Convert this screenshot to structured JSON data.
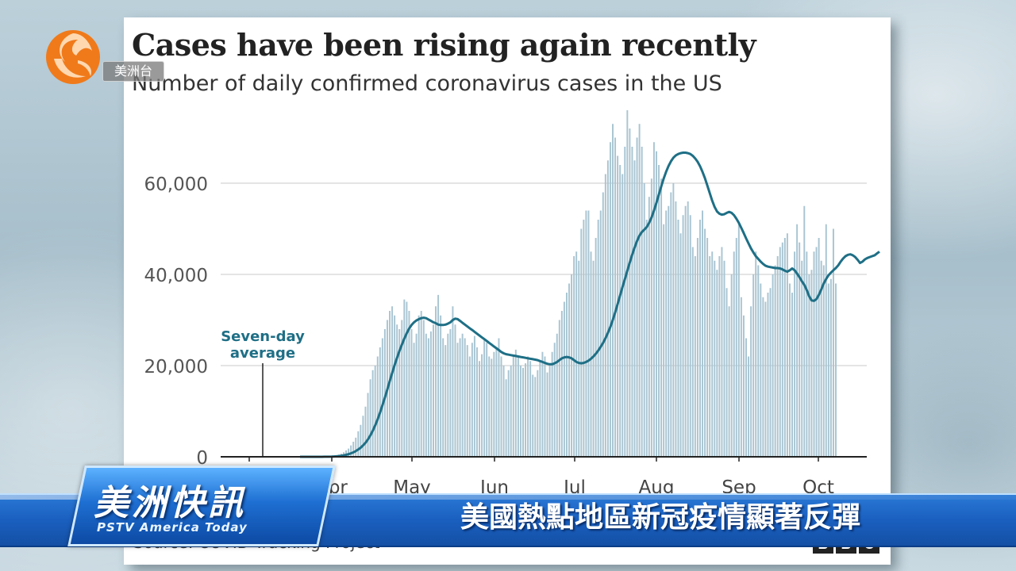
{
  "chart_data": {
    "type": "bar",
    "title": "Cases have been rising again recently",
    "subtitle": "Number of daily confirmed coronavirus cases in the US",
    "source": "Source: COVID Tracking Project",
    "xlabel": "",
    "ylabel": "",
    "ylim": [
      0,
      75000
    ],
    "yticks": [
      0,
      20000,
      40000,
      60000
    ],
    "ytick_labels": [
      "0",
      "20,000",
      "40,000",
      "60,000"
    ],
    "xtick_labels": [
      "Apr",
      "May",
      "Jun",
      "Jul",
      "Aug",
      "Sep",
      "Oct"
    ],
    "grid": true,
    "annotation": [
      "Seven-day",
      "average"
    ],
    "series": [
      {
        "type": "bar",
        "values": []
      },
      {
        "type": "line",
        "values": []
      }
    ],
    "daily_cases_approx": [
      0,
      0,
      0,
      1,
      1,
      2,
      3,
      5,
      8,
      12,
      20,
      40,
      70,
      120,
      200,
      300,
      500,
      700,
      1000,
      1400,
      1800,
      2500,
      3300,
      4200,
      5600,
      7000,
      9000,
      11000,
      14000,
      17000,
      19000,
      20000,
      22000,
      24000,
      26000,
      28000,
      30000,
      32000,
      33000,
      31000,
      29000,
      28000,
      30000,
      34500,
      34000,
      32000,
      28000,
      25000,
      27000,
      31000,
      32000,
      30000,
      27000,
      26000,
      27500,
      29000,
      33000,
      35500,
      31000,
      26000,
      24500,
      27000,
      28000,
      33000,
      29000,
      25000,
      26000,
      27000,
      26000,
      24500,
      22000,
      25000,
      26500,
      24000,
      21000,
      22500,
      26000,
      25000,
      22000,
      21500,
      23000,
      24000,
      26000,
      22000,
      20000,
      17000,
      19000,
      20000,
      22000,
      23500,
      22000,
      20000,
      19500,
      20500,
      22000,
      21000,
      18000,
      17500,
      19000,
      21000,
      23000,
      22000,
      18500,
      20500,
      23000,
      25000,
      27000,
      30000,
      32000,
      34000,
      36000,
      38000,
      40000,
      44000,
      45000,
      43000,
      50000,
      52000,
      54000,
      54000,
      45000,
      43000,
      48000,
      52000,
      54000,
      58000,
      62000,
      65000,
      69000,
      73000,
      70000,
      66000,
      64000,
      62000,
      68000,
      76000,
      72000,
      68000,
      65000,
      70000,
      73000,
      68000,
      60000,
      52000,
      57000,
      61000,
      69000,
      67000,
      64000,
      61000,
      51000,
      54000,
      55000,
      58000,
      60000,
      56000,
      52000,
      49000,
      53000,
      55000,
      56000,
      53000,
      46000,
      44000,
      48000,
      52000,
      54000,
      50000,
      48000,
      44000,
      45000,
      43000,
      41000,
      44000,
      46000,
      43000,
      37000,
      33000,
      40000,
      45000,
      48000,
      51000,
      35000,
      31000,
      26000,
      22000,
      33000,
      40000,
      45000,
      42000,
      38000,
      35000,
      34000,
      36000,
      37000,
      40000,
      42000,
      44000,
      46000,
      47000,
      48000,
      49000,
      38000,
      36000,
      45000,
      51000,
      47000,
      43000,
      55000,
      45000,
      40000,
      41000,
      45000,
      46000,
      48000,
      43000,
      42000,
      51000,
      38000,
      39000,
      50000,
      38000
    ],
    "seven_day_average_approx": [
      0,
      0,
      0,
      0,
      1,
      1,
      2,
      3,
      4,
      6,
      10,
      16,
      26,
      42,
      66,
      100,
      150,
      220,
      310,
      430,
      580,
      760,
      980,
      1250,
      1600,
      2000,
      2500,
      3100,
      3800,
      4700,
      5700,
      6900,
      8200,
      9700,
      11300,
      13000,
      14800,
      16600,
      18400,
      20100,
      21700,
      23200,
      24600,
      25900,
      27100,
      28100,
      28900,
      29500,
      29900,
      30200,
      30400,
      30500,
      30400,
      30100,
      29800,
      29500,
      29300,
      29000,
      28900,
      28900,
      29000,
      29200,
      29500,
      30000,
      30300,
      30200,
      29800,
      29400,
      29000,
      28600,
      28200,
      27800,
      27400,
      27000,
      26600,
      26200,
      25800,
      25400,
      25000,
      24600,
      24200,
      23800,
      23400,
      23000,
      22700,
      22500,
      22400,
      22300,
      22200,
      22100,
      22000,
      21900,
      21800,
      21700,
      21600,
      21500,
      21400,
      21300,
      21200,
      21000,
      20800,
      20600,
      20400,
      20300,
      20300,
      20500,
      20800,
      21200,
      21600,
      21800,
      21900,
      21800,
      21600,
      21200,
      20800,
      20600,
      20500,
      20600,
      20800,
      21100,
      21500,
      22000,
      22600,
      23300,
      24100,
      25000,
      26000,
      27200,
      28500,
      30000,
      31700,
      33500,
      35400,
      37200,
      39000,
      40800,
      42600,
      44300,
      45900,
      47300,
      48500,
      49300,
      49800,
      50400,
      51300,
      52500,
      54000,
      55700,
      57500,
      59300,
      61000,
      62500,
      63800,
      64800,
      65600,
      66100,
      66400,
      66600,
      66700,
      66700,
      66600,
      66400,
      66000,
      65400,
      64700,
      63700,
      62500,
      61100,
      59500,
      57800,
      56200,
      54800,
      53800,
      53300,
      53100,
      53200,
      53500,
      53700,
      53500,
      53000,
      52200,
      51300,
      50200,
      49100,
      47900,
      46800,
      45700,
      44800,
      44000,
      43400,
      42800,
      42300,
      41900,
      41700,
      41600,
      41500,
      41400,
      41400,
      41300,
      41100,
      40800,
      40600,
      40900,
      41300,
      40900,
      40200,
      39400,
      38500,
      37700,
      36600,
      35200,
      34300,
      34200,
      34600,
      35500,
      36700,
      38000,
      39000,
      39800,
      40400,
      40900,
      41400,
      42000,
      42800,
      43500,
      44000,
      44300,
      44400,
      44200,
      43800,
      43200,
      42500,
      42800,
      43300,
      43600,
      43800,
      44000,
      44200,
      44600,
      45000
    ]
  },
  "overlay": {
    "station_label": "美洲台",
    "program_name": "美洲快訊",
    "program_name_en": "PSTV America Today",
    "headline": "美國熱點地區新冠疫情顯著反彈",
    "bbc_letters": [
      "B",
      "B",
      "C"
    ]
  },
  "colors": {
    "bar": "#a9c5d2",
    "line": "#1e6f86",
    "banner": "#1a5fbf",
    "logo_orange": "#f07a1a"
  }
}
